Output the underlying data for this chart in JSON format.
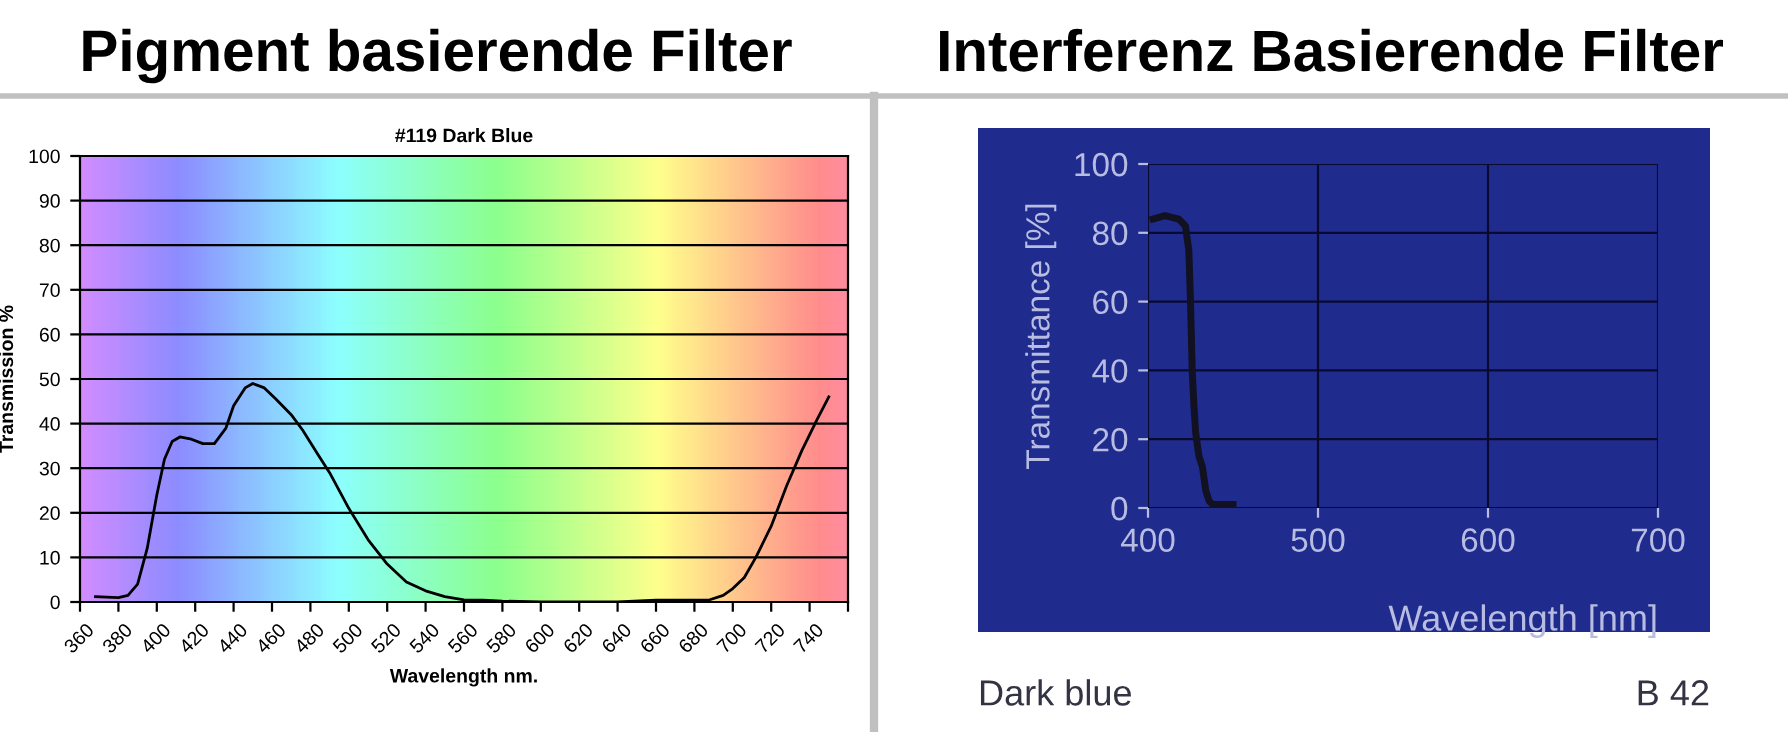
{
  "chart_data": [
    {
      "type": "line",
      "title": "Pigment basierende Filter",
      "subtitle": "#119 Dark Blue",
      "xlabel": "Wavelength nm.",
      "ylabel": "Transmission %",
      "x": [
        368,
        380,
        385,
        390,
        395,
        400,
        404,
        408,
        412,
        418,
        424,
        430,
        436,
        440,
        446,
        450,
        456,
        462,
        470,
        476,
        484,
        490,
        500,
        510,
        520,
        530,
        540,
        550,
        560,
        570,
        580,
        600,
        640,
        660,
        680,
        688,
        695,
        700,
        706,
        712,
        720,
        728,
        736,
        744,
        750
      ],
      "series": [
        {
          "color": "#000000",
          "values": [
            1.2,
            1,
            1.5,
            4,
            12,
            24,
            32,
            36,
            37,
            36.5,
            35.5,
            35.5,
            39,
            44,
            48,
            49,
            48,
            45.5,
            42,
            38.5,
            33,
            29,
            21,
            14,
            8.5,
            4.5,
            2.5,
            1.2,
            0.5,
            0.4,
            0.2,
            0,
            0,
            0.4,
            0.4,
            0.5,
            1.5,
            3,
            5.5,
            10,
            17,
            26,
            34,
            41,
            46
          ]
        }
      ],
      "xlim": [
        360,
        760
      ],
      "ylim": [
        0,
        100
      ],
      "xticks": [
        360,
        380,
        400,
        420,
        440,
        460,
        480,
        500,
        520,
        540,
        560,
        580,
        600,
        620,
        640,
        660,
        680,
        700,
        720,
        740,
        {
          "value": 760,
          "label": null
        }
      ],
      "yticks": [
        0,
        10,
        20,
        30,
        40,
        50,
        60,
        70,
        80,
        90,
        100
      ],
      "grid": "y",
      "marker": "none"
    },
    {
      "type": "line",
      "title": "Interferenz Basierende Filter",
      "xlabel": "Wavelength [nm]",
      "ylabel": "Transmittance [%]",
      "x": [
        403,
        410,
        418,
        422,
        424,
        425,
        426,
        427,
        428,
        430,
        432,
        434,
        436,
        438,
        440,
        450
      ],
      "series": [
        {
          "color": "#111122",
          "values": [
            84,
            85,
            84,
            82,
            75,
            60,
            40,
            30,
            22,
            15,
            12,
            5,
            2,
            1,
            1,
            1
          ]
        }
      ],
      "xlim": [
        400,
        700
      ],
      "ylim": [
        0,
        100
      ],
      "xticks": [
        400,
        500,
        600,
        700
      ],
      "yticks": [
        0,
        20,
        40,
        60,
        80,
        100
      ],
      "grid": true,
      "marker": "none",
      "annotations": [
        "Dark blue",
        "B 42"
      ]
    }
  ]
}
